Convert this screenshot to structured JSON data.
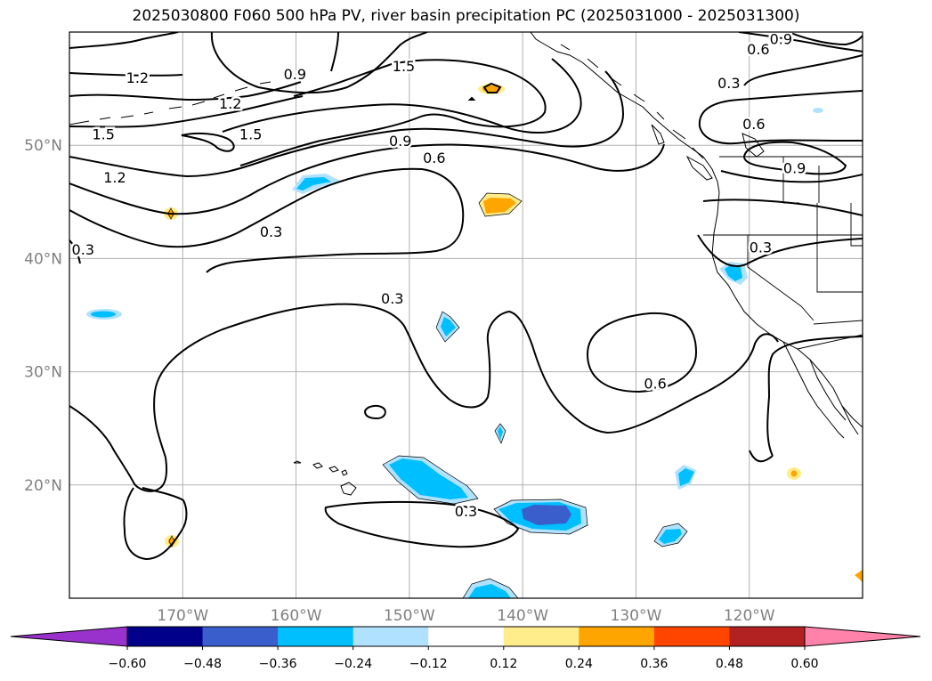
{
  "title": "2025030800 F060 500 hPa PV, river basin precipitation PC (2025031000 - 2025031300)",
  "map": {
    "lon_range": [
      -180,
      -110
    ],
    "lat_range": [
      10,
      60
    ],
    "lon_ticks": [
      {
        "lon": -170,
        "label": "170°W"
      },
      {
        "lon": -160,
        "label": "160°W"
      },
      {
        "lon": -150,
        "label": "150°W"
      },
      {
        "lon": -140,
        "label": "140°W"
      },
      {
        "lon": -130,
        "label": "130°W"
      },
      {
        "lon": -120,
        "label": "120°W"
      }
    ],
    "lat_ticks": [
      {
        "lat": 50,
        "label": "50°N"
      },
      {
        "lat": 40,
        "label": "40°N"
      },
      {
        "lat": 30,
        "label": "30°N"
      },
      {
        "lat": 20,
        "label": "20°N"
      }
    ],
    "grid": true,
    "contour_color": "#000000",
    "contour_labels": [
      {
        "lon": -174,
        "lat": 56.0,
        "text": "1.2"
      },
      {
        "lon": -160.1,
        "lat": 56.3,
        "text": "0.9"
      },
      {
        "lon": -150.5,
        "lat": 57.0,
        "text": "1.5"
      },
      {
        "lon": -165.8,
        "lat": 53.7,
        "text": "1.2"
      },
      {
        "lon": -177.0,
        "lat": 51.0,
        "text": "1.5"
      },
      {
        "lon": -164.0,
        "lat": 51.0,
        "text": "1.5"
      },
      {
        "lon": -150.8,
        "lat": 50.4,
        "text": "0.9"
      },
      {
        "lon": -147.8,
        "lat": 48.9,
        "text": "0.6"
      },
      {
        "lon": -176.0,
        "lat": 47.2,
        "text": "1.2"
      },
      {
        "lon": -178.8,
        "lat": 40.8,
        "text": "0.3"
      },
      {
        "lon": -162.2,
        "lat": 42.4,
        "text": "0.3"
      },
      {
        "lon": -151.5,
        "lat": 36.5,
        "text": "0.3"
      },
      {
        "lon": -128.3,
        "lat": 29.0,
        "text": "0.6"
      },
      {
        "lon": -119.2,
        "lat": 58.5,
        "text": "0.6"
      },
      {
        "lon": -117.2,
        "lat": 59.4,
        "text": "0.9"
      },
      {
        "lon": -121.8,
        "lat": 55.5,
        "text": "0.3"
      },
      {
        "lon": -119.6,
        "lat": 51.9,
        "text": "0.6"
      },
      {
        "lon": -116.0,
        "lat": 48.0,
        "text": "0.9"
      },
      {
        "lon": -119.0,
        "lat": 41.0,
        "text": "0.3"
      },
      {
        "lon": -145.0,
        "lat": 17.7,
        "text": "0.3"
      }
    ]
  },
  "colorbar": {
    "boundaries": [
      -0.72,
      -0.6,
      -0.48,
      -0.36,
      -0.24,
      -0.12,
      0.12,
      0.24,
      0.36,
      0.48,
      0.6,
      0.72
    ],
    "colors": [
      "#9932cc",
      "#00008b",
      "#3a5fcd",
      "#00bfff",
      "#b0e2ff",
      "#ffffff",
      "#ffec8b",
      "#ffa500",
      "#ff4500",
      "#b22222",
      "#ff82ab"
    ],
    "under_color": "#9932cc",
    "over_color": "#ff82ab",
    "tick_values": [
      -0.6,
      -0.48,
      -0.36,
      -0.24,
      -0.12,
      0.12,
      0.24,
      0.36,
      0.48,
      0.6
    ],
    "tick_labels": [
      "−0.60",
      "−0.48",
      "−0.36",
      "−0.24",
      "−0.12",
      "0.12",
      "0.24",
      "0.36",
      "0.48",
      "0.60"
    ]
  }
}
